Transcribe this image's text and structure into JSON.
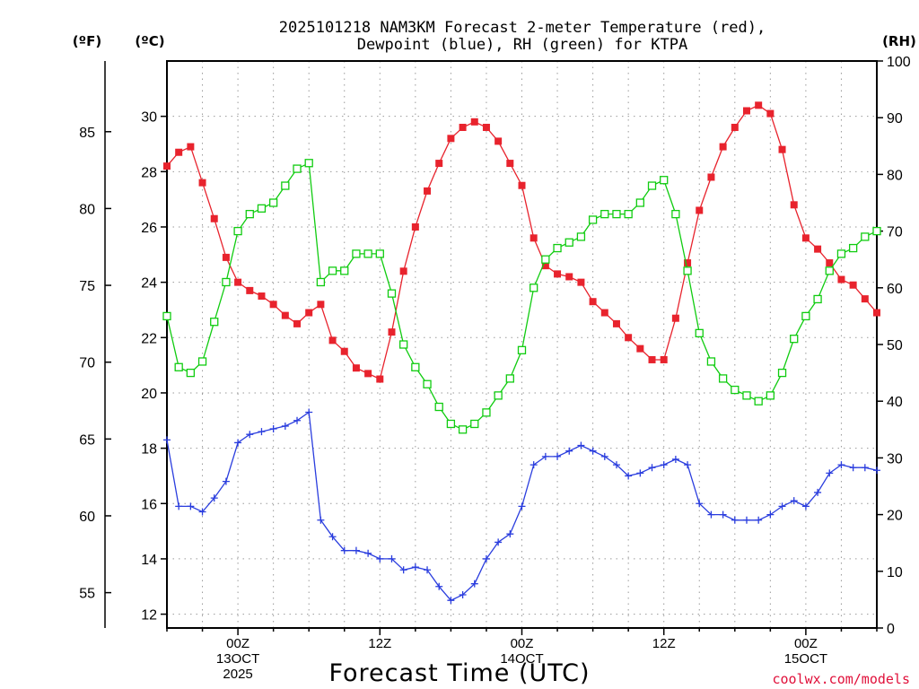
{
  "chart_data": {
    "type": "line",
    "title": [
      "2025101218 NAM3KM Forecast 2-meter Temperature (red),",
      "Dewpoint (blue), RH (green) for KTPA"
    ],
    "xlabel": "Forecast Time (UTC)",
    "credit": "coolwx.com/models",
    "units": {
      "fahrenheit": "(ºF)",
      "celsius": "(ºC)",
      "rh": "(RH)"
    },
    "x_range_hours": [
      18,
      78
    ],
    "x_ticks": [
      {
        "hour": 24,
        "lines": [
          "00Z",
          "13OCT",
          "2025"
        ]
      },
      {
        "hour": 36,
        "lines": [
          "12Z"
        ]
      },
      {
        "hour": 48,
        "lines": [
          "00Z",
          "14OCT"
        ]
      },
      {
        "hour": 60,
        "lines": [
          "12Z"
        ]
      },
      {
        "hour": 72,
        "lines": [
          "00Z",
          "15OCT"
        ]
      }
    ],
    "left_axis_c": {
      "range": [
        11.5,
        32
      ],
      "ticks": [
        12,
        14,
        16,
        18,
        20,
        22,
        24,
        26,
        28,
        30
      ]
    },
    "left_axis_f": {
      "ticks": [
        55,
        60,
        65,
        70,
        75,
        80,
        85
      ]
    },
    "right_axis_rh": {
      "range": [
        0,
        100
      ],
      "ticks": [
        0,
        10,
        20,
        30,
        40,
        50,
        60,
        70,
        80,
        90,
        100
      ]
    },
    "series": [
      {
        "name": "Temperature",
        "unit": "C",
        "color": "#e8232d",
        "marker": "filled-square",
        "x": [
          18,
          19,
          20,
          21,
          22,
          23,
          24,
          25,
          26,
          27,
          28,
          29,
          30,
          31,
          32,
          33,
          34,
          35,
          36,
          37,
          38,
          39,
          40,
          41,
          42,
          43,
          44,
          45,
          46,
          47,
          48,
          49,
          50,
          51,
          52,
          53,
          54,
          55,
          56,
          57,
          58,
          59,
          60,
          61,
          62,
          63,
          64,
          65,
          66,
          67,
          68,
          69,
          70,
          71,
          72,
          73,
          74,
          75,
          76,
          77,
          78
        ],
        "values": [
          28.2,
          28.7,
          28.9,
          27.6,
          26.3,
          24.9,
          24.0,
          23.7,
          23.5,
          23.2,
          22.8,
          22.5,
          22.9,
          23.2,
          21.9,
          21.5,
          20.9,
          20.7,
          20.5,
          22.2,
          24.4,
          26.0,
          27.3,
          28.3,
          29.2,
          29.6,
          29.8,
          29.6,
          29.1,
          28.3,
          27.5,
          25.6,
          24.6,
          24.3,
          24.2,
          24.0,
          23.3,
          22.9,
          22.5,
          22.0,
          21.6,
          21.2,
          21.2,
          22.7,
          24.7,
          26.6,
          27.8,
          28.9,
          29.6,
          30.2,
          30.4,
          30.1,
          28.8,
          26.8,
          25.6,
          25.2,
          24.7,
          24.1,
          23.9,
          23.4,
          22.9
        ]
      },
      {
        "name": "Dewpoint",
        "unit": "C",
        "color": "#2a3dde",
        "marker": "plus",
        "x": [
          18,
          19,
          20,
          21,
          22,
          23,
          24,
          25,
          26,
          27,
          28,
          29,
          30,
          31,
          32,
          33,
          34,
          35,
          36,
          37,
          38,
          39,
          40,
          41,
          42,
          43,
          44,
          45,
          46,
          47,
          48,
          49,
          50,
          51,
          52,
          53,
          54,
          55,
          56,
          57,
          58,
          59,
          60,
          61,
          62,
          63,
          64,
          65,
          66,
          67,
          68,
          69,
          70,
          71,
          72,
          73,
          74,
          75,
          76,
          77,
          78
        ],
        "values": [
          18.3,
          15.9,
          15.9,
          15.7,
          16.2,
          16.8,
          18.2,
          18.5,
          18.6,
          18.7,
          18.8,
          19.0,
          19.3,
          15.4,
          14.8,
          14.3,
          14.3,
          14.2,
          14.0,
          14.0,
          13.6,
          13.7,
          13.6,
          13.0,
          12.5,
          12.7,
          13.1,
          14.0,
          14.6,
          14.9,
          15.9,
          17.4,
          17.7,
          17.7,
          17.9,
          18.1,
          17.9,
          17.7,
          17.4,
          17.0,
          17.1,
          17.3,
          17.4,
          17.6,
          17.4,
          16.0,
          15.6,
          15.6,
          15.4,
          15.4,
          15.4,
          15.6,
          15.9,
          16.1,
          15.9,
          16.4,
          17.1,
          17.4,
          17.3,
          17.3,
          17.2
        ]
      },
      {
        "name": "RH",
        "unit": "%",
        "color": "#10cc10",
        "marker": "open-square",
        "x": [
          18,
          19,
          20,
          21,
          22,
          23,
          24,
          25,
          26,
          27,
          28,
          29,
          30,
          31,
          32,
          33,
          34,
          35,
          36,
          37,
          38,
          39,
          40,
          41,
          42,
          43,
          44,
          45,
          46,
          47,
          48,
          49,
          50,
          51,
          52,
          53,
          54,
          55,
          56,
          57,
          58,
          59,
          60,
          61,
          62,
          63,
          64,
          65,
          66,
          67,
          68,
          69,
          70,
          71,
          72,
          73,
          74,
          75,
          76,
          77,
          78
        ],
        "values": [
          55,
          46,
          45,
          47,
          54,
          61,
          70,
          73,
          74,
          75,
          78,
          81,
          82,
          61,
          63,
          63,
          66,
          66,
          66,
          59,
          50,
          46,
          43,
          39,
          36,
          35,
          36,
          38,
          41,
          44,
          49,
          60,
          65,
          67,
          68,
          69,
          72,
          73,
          73,
          73,
          75,
          78,
          79,
          73,
          63,
          52,
          47,
          44,
          42,
          41,
          40,
          41,
          45,
          51,
          55,
          58,
          63,
          66,
          67,
          69,
          70
        ]
      }
    ]
  }
}
